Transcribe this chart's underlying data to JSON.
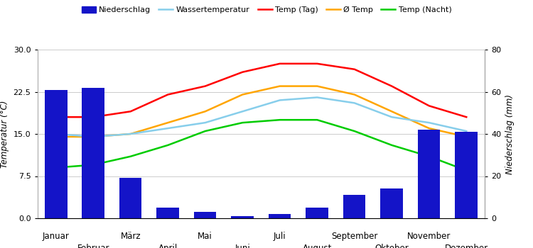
{
  "months": [
    "Januar",
    "Februar",
    "März",
    "April",
    "Mai",
    "Juni",
    "Juli",
    "August",
    "September",
    "Oktober",
    "November",
    "Dezember"
  ],
  "niederschlag": [
    61,
    62,
    19,
    5,
    3,
    1,
    2,
    5,
    11,
    14,
    42,
    41
  ],
  "temp_tag": [
    18.0,
    18.0,
    19.0,
    22.0,
    23.5,
    26.0,
    27.5,
    27.5,
    26.5,
    23.5,
    20.0,
    18.0
  ],
  "avg_temp": [
    14.5,
    14.5,
    15.0,
    17.0,
    19.0,
    22.0,
    23.5,
    23.5,
    22.0,
    19.0,
    16.0,
    14.5
  ],
  "wasser_temp": [
    15.0,
    14.5,
    15.0,
    16.0,
    17.0,
    19.0,
    21.0,
    21.5,
    20.5,
    18.0,
    17.0,
    15.5
  ],
  "temp_nacht": [
    9.0,
    9.5,
    11.0,
    13.0,
    15.5,
    17.0,
    17.5,
    17.5,
    15.5,
    13.0,
    11.0,
    8.5
  ],
  "bar_color": "#1414c8",
  "temp_tag_color": "#ff0000",
  "avg_temp_color": "#ffa500",
  "wasser_temp_color": "#87ceeb",
  "temp_nacht_color": "#00cc00",
  "ylabel_left": "Temperatur (°C)",
  "ylabel_right": "Niederschlag (mm)",
  "ylim_left": [
    0.0,
    30.0
  ],
  "ylim_right": [
    0,
    80
  ],
  "yticks_left": [
    0.0,
    7.5,
    15.0,
    22.5,
    30.0
  ],
  "yticks_right": [
    0,
    20,
    40,
    60,
    80
  ],
  "legend_labels": [
    "Niederschlag",
    "Wassertemperatur",
    "Temp (Tag)",
    "Ø Temp",
    "Temp (Nacht)"
  ],
  "background_color": "#ffffff",
  "grid_color": "#cccccc"
}
